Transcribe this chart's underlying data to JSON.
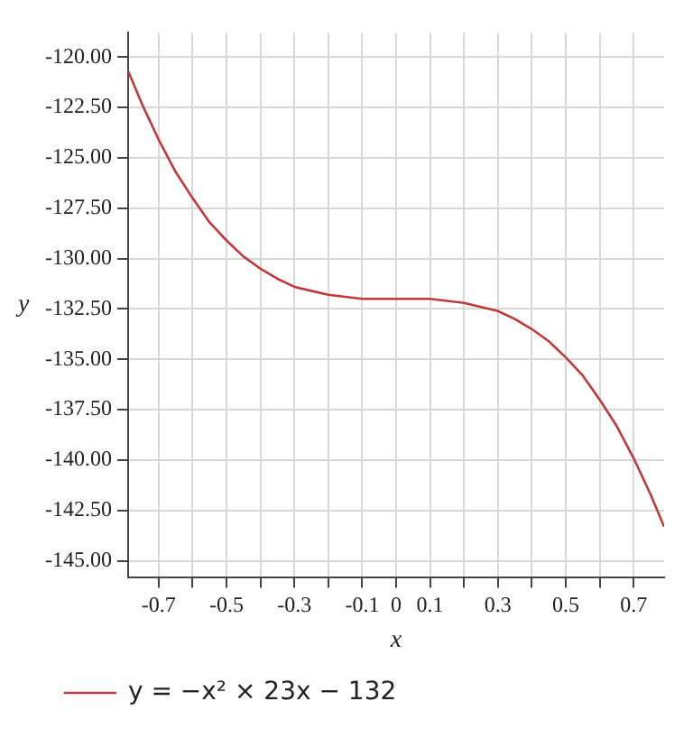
{
  "chart_data": {
    "type": "line",
    "xlabel": "x",
    "ylabel": "y",
    "x": [
      -0.79,
      -0.75,
      -0.7,
      -0.65,
      -0.6,
      -0.55,
      -0.5,
      -0.45,
      -0.4,
      -0.35,
      -0.3,
      -0.25,
      -0.2,
      -0.15,
      -0.1,
      -0.05,
      0,
      0.05,
      0.1,
      0.15,
      0.2,
      0.25,
      0.3,
      0.35,
      0.4,
      0.45,
      0.5,
      0.55,
      0.6,
      0.65,
      0.7,
      0.75,
      0.79
    ],
    "series": [
      {
        "name": "y = −x² × 23x − 132",
        "color": "#c0393b",
        "values": [
          -120.7,
          -122.3,
          -124.1,
          -125.7,
          -127.0,
          -128.2,
          -129.1,
          -129.9,
          -130.5,
          -131.0,
          -131.4,
          -131.6,
          -131.8,
          -131.9,
          -132.0,
          -132.0,
          -132.0,
          -132.0,
          -132.0,
          -132.1,
          -132.2,
          -132.4,
          -132.6,
          -133.0,
          -133.5,
          -134.1,
          -134.9,
          -135.8,
          -137.0,
          -138.3,
          -139.9,
          -141.7,
          -143.3
        ]
      }
    ],
    "xlim": [
      -0.79,
      0.79
    ],
    "xticks": [
      -0.7,
      {
        "value": -0.6,
        "label": null
      },
      -0.5,
      {
        "value": -0.4,
        "label": null
      },
      -0.3,
      {
        "value": -0.2,
        "label": null
      },
      -0.1,
      0,
      0.1,
      {
        "value": 0.2,
        "label": null
      },
      0.3,
      {
        "value": 0.4,
        "label": null
      },
      0.5,
      {
        "value": 0.6,
        "label": null
      },
      0.7
    ],
    "ylim": [
      -145.8,
      -118.8
    ],
    "yticks": [
      {
        "value": -145,
        "label": "-145.00"
      },
      {
        "value": -142.5,
        "label": "-142.50"
      },
      {
        "value": -140,
        "label": "-140.00"
      },
      {
        "value": -137.5,
        "label": "-137.50"
      },
      {
        "value": -135,
        "label": "-135.00"
      },
      {
        "value": -132.5,
        "label": "-132.50"
      },
      {
        "value": -130,
        "label": "-130.00"
      },
      {
        "value": -127.5,
        "label": "-127.50"
      },
      {
        "value": -125,
        "label": "-125.00"
      },
      {
        "value": -122.5,
        "label": "-122.50"
      },
      {
        "value": -120,
        "label": "-120.00"
      }
    ],
    "grid": true,
    "legend": "bottom left",
    "marker": "none",
    "line_style": "solid"
  }
}
